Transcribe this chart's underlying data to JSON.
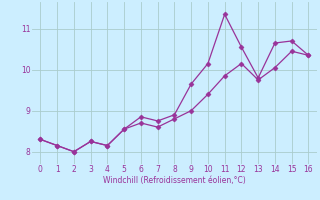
{
  "xlabel": "Windchill (Refroidissement éolien,°C)",
  "line1_x": [
    0,
    1,
    2,
    3,
    4,
    5,
    6,
    7,
    8,
    9,
    10,
    11,
    12,
    13,
    14,
    15,
    16
  ],
  "line1_y": [
    8.3,
    8.15,
    8.0,
    8.25,
    8.15,
    8.55,
    8.85,
    8.75,
    8.9,
    9.65,
    10.15,
    11.35,
    10.55,
    9.8,
    10.65,
    10.7,
    10.35
  ],
  "line2_x": [
    0,
    1,
    2,
    3,
    4,
    5,
    6,
    7,
    8,
    9,
    10,
    11,
    12,
    13,
    14,
    15,
    16
  ],
  "line2_y": [
    8.3,
    8.15,
    8.0,
    8.25,
    8.15,
    8.55,
    8.7,
    8.6,
    8.8,
    9.0,
    9.4,
    9.85,
    10.15,
    9.75,
    10.05,
    10.45,
    10.35
  ],
  "line_color": "#993399",
  "bg_color": "#cceeff",
  "grid_color": "#aacccc",
  "ylim_min": 7.7,
  "ylim_max": 11.65,
  "xlim_min": -0.5,
  "xlim_max": 16.5,
  "yticks": [
    8,
    9,
    10,
    11
  ],
  "xticks": [
    0,
    1,
    2,
    3,
    4,
    5,
    6,
    7,
    8,
    9,
    10,
    11,
    12,
    13,
    14,
    15,
    16
  ]
}
